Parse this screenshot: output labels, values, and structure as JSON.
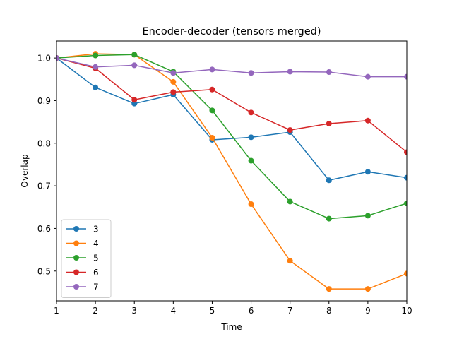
{
  "chart_data": {
    "type": "line",
    "title": "Encoder-decoder (tensors merged)",
    "xlabel": "Time",
    "ylabel": "Overlap",
    "x": [
      1,
      2,
      3,
      4,
      5,
      6,
      7,
      8,
      9,
      10
    ],
    "xlim": [
      1,
      10
    ],
    "ylim": [
      0.43,
      1.04
    ],
    "xticks": [
      "1",
      "2",
      "3",
      "4",
      "5",
      "6",
      "7",
      "8",
      "9",
      "10"
    ],
    "yticks": [
      "0.5",
      "0.6",
      "0.7",
      "0.8",
      "0.9",
      "1.0"
    ],
    "grid": false,
    "legend_position": "lower-left",
    "series": [
      {
        "name": "3",
        "color": "#1f77b4",
        "values": [
          1.0,
          0.931,
          0.893,
          0.914,
          0.808,
          0.814,
          0.826,
          0.713,
          0.733,
          0.719
        ]
      },
      {
        "name": "4",
        "color": "#ff7f0e",
        "values": [
          1.0,
          1.01,
          1.008,
          0.944,
          0.813,
          0.657,
          0.524,
          0.458,
          0.458,
          0.494
        ]
      },
      {
        "name": "5",
        "color": "#2ca02c",
        "values": [
          1.0,
          1.006,
          1.008,
          0.968,
          0.877,
          0.759,
          0.663,
          0.623,
          0.63,
          0.659
        ]
      },
      {
        "name": "6",
        "color": "#d62728",
        "values": [
          1.0,
          0.976,
          0.902,
          0.92,
          0.926,
          0.872,
          0.831,
          0.846,
          0.853,
          0.779
        ]
      },
      {
        "name": "7",
        "color": "#9467bd",
        "values": [
          1.0,
          0.979,
          0.983,
          0.965,
          0.973,
          0.965,
          0.968,
          0.967,
          0.956,
          0.956
        ]
      }
    ]
  }
}
